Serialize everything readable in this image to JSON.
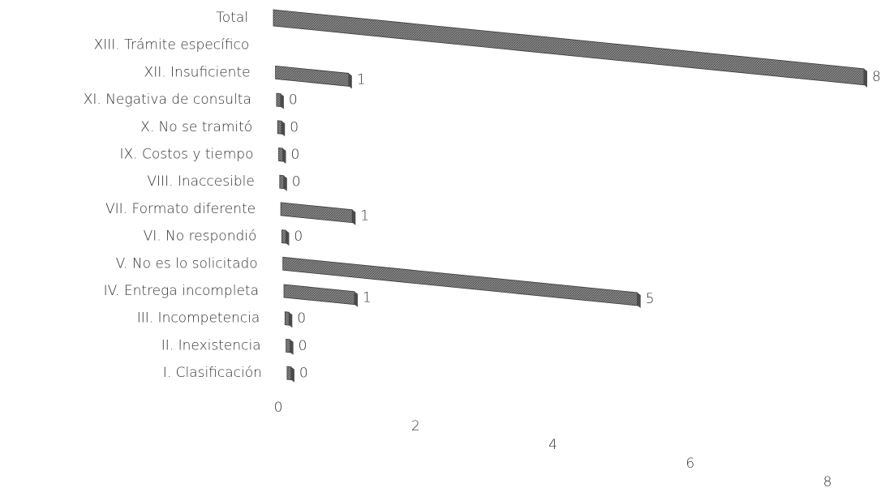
{
  "chart_data": {
    "type": "bar",
    "orientation": "horizontal",
    "categories": [
      "Total",
      "XIII. Trámite específico",
      "XII. Insuficiente",
      "XI. Negativa de consulta",
      "X. No se tramitó",
      "IX. Costos y tiempo",
      "VIII. Inaccesible",
      "VII. Formato diferente",
      "VI. No respondió",
      "V. No es lo solicitado",
      "IV. Entrega incompleta",
      "III. Incompetencia",
      "II. Inexistencia",
      "I. Clasificación"
    ],
    "values": [
      8,
      null,
      1,
      0,
      0,
      0,
      0,
      1,
      0,
      5,
      1,
      0,
      0,
      0
    ],
    "color": "#707070",
    "xlim": [
      0,
      8
    ],
    "xticks": [
      0,
      2,
      4,
      6,
      8
    ],
    "grid": false
  }
}
